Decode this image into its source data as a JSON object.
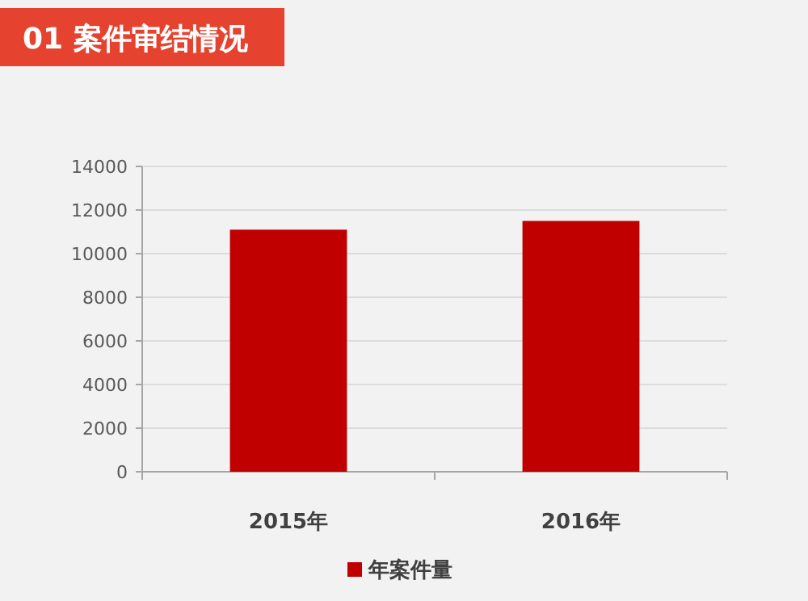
{
  "chart_data": {
    "type": "bar",
    "title": "01  案件审结情况",
    "categories": [
      "2015年",
      "2016年"
    ],
    "series": [
      {
        "name": "年案件量",
        "color": "#c00000",
        "values": [
          11100,
          11500
        ]
      }
    ],
    "ylim": [
      0,
      14000
    ],
    "yticks": [
      0,
      2000,
      4000,
      6000,
      8000,
      10000,
      12000,
      14000
    ],
    "grid": "y",
    "legend": "bottom"
  }
}
